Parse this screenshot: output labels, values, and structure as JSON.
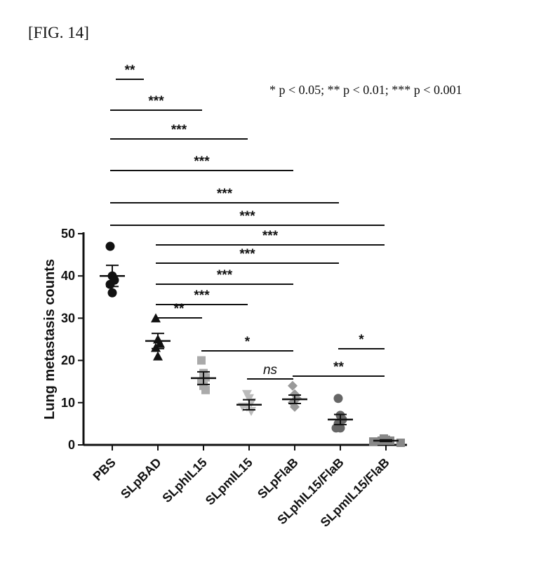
{
  "figure_label": "[FIG. 14]",
  "pvalue_legend": "* p < 0.05; ** p < 0.01; *** p < 0.001",
  "chart_data": {
    "type": "scatter",
    "ylabel": "Lung metastasis counts",
    "ylim": [
      0,
      50
    ],
    "yticks": [
      0,
      10,
      20,
      30,
      40,
      50
    ],
    "categories": [
      "PBS",
      "SLpBAD",
      "SLphIL15",
      "SLpmIL15",
      "SLpFlaB",
      "SLphIL15/FlaB",
      "SLpmIL15/FlaB"
    ],
    "groups": [
      {
        "name": "PBS",
        "marker": "circle",
        "color": "#111111",
        "values": [
          47,
          40,
          39,
          38,
          36
        ],
        "mean": 40,
        "sem": 2.5
      },
      {
        "name": "SLpBAD",
        "marker": "triangle-up",
        "color": "#111111",
        "values": [
          30,
          25,
          24,
          23,
          21
        ],
        "mean": 24.6,
        "sem": 1.8
      },
      {
        "name": "SLphIL15",
        "marker": "square",
        "color": "#aaaaaa",
        "values": [
          20,
          17,
          16,
          15,
          14,
          13
        ],
        "mean": 15.8,
        "sem": 1.5
      },
      {
        "name": "SLpmIL15",
        "marker": "triangle-down",
        "color": "#bbbbbb",
        "values": [
          12,
          11,
          10,
          9,
          9,
          8
        ],
        "mean": 9.5,
        "sem": 1.2
      },
      {
        "name": "SLpFlaB",
        "marker": "diamond",
        "color": "#999999",
        "values": [
          14,
          12,
          11,
          10,
          9
        ],
        "mean": 10.8,
        "sem": 1.0
      },
      {
        "name": "SLphIL15/FlaB",
        "marker": "circle",
        "color": "#666666",
        "values": [
          11,
          7,
          6,
          5,
          4,
          4
        ],
        "mean": 6.0,
        "sem": 1.2
      },
      {
        "name": "SLpmIL15/FlaB",
        "marker": "square",
        "color": "#888888",
        "values": [
          1.5,
          1.2,
          1,
          1,
          0.8,
          0.5
        ],
        "mean": 1.0,
        "sem": 0.2
      }
    ],
    "comparisons": [
      {
        "from": "PBS",
        "to": "SLpBAD",
        "label": "**"
      },
      {
        "from": "PBS",
        "to": "SLphIL15",
        "label": "***"
      },
      {
        "from": "PBS",
        "to": "SLpmIL15",
        "label": "***"
      },
      {
        "from": "PBS",
        "to": "SLpFlaB",
        "label": "***"
      },
      {
        "from": "PBS",
        "to": "SLphIL15/FlaB",
        "label": "***"
      },
      {
        "from": "PBS",
        "to": "SLpmIL15/FlaB",
        "label": "***"
      },
      {
        "from": "SLpBAD",
        "to": "SLpmIL15/FlaB",
        "label": "***"
      },
      {
        "from": "SLpBAD",
        "to": "SLphIL15/FlaB",
        "label": "***"
      },
      {
        "from": "SLpBAD",
        "to": "SLpFlaB",
        "label": "***"
      },
      {
        "from": "SLpBAD",
        "to": "SLpmIL15",
        "label": "***"
      },
      {
        "from": "SLpBAD",
        "to": "SLphIL15",
        "label": "**"
      },
      {
        "from": "SLphIL15",
        "to": "SLpFlaB",
        "label": "*"
      },
      {
        "from": "SLpmIL15",
        "to": "SLpFlaB",
        "label": "ns"
      },
      {
        "from": "SLphIL15/FlaB",
        "to": "SLpmIL15/FlaB",
        "label": "*"
      },
      {
        "from": "SLpFlaB",
        "to": "SLpmIL15/FlaB",
        "label": "**"
      }
    ]
  }
}
